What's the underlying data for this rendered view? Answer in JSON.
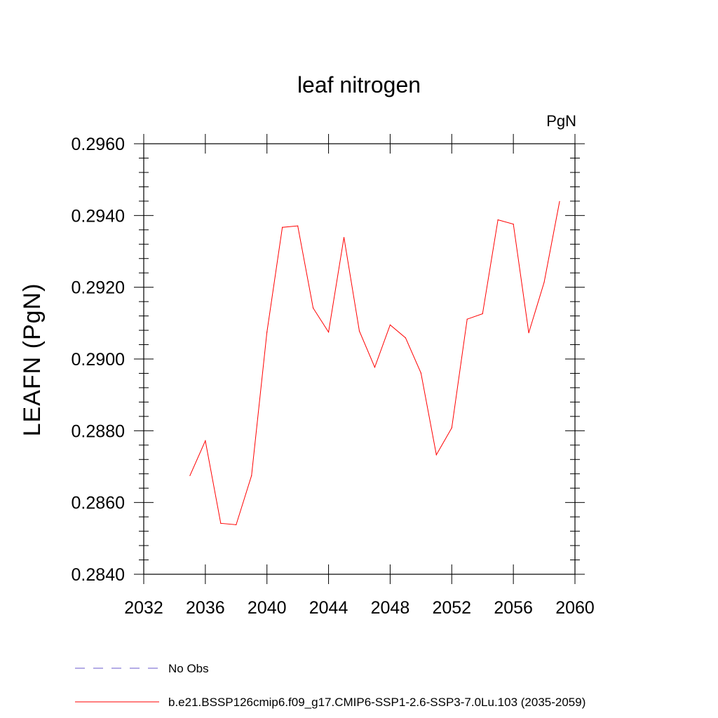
{
  "chart_data": {
    "type": "line",
    "title": "leaf nitrogen",
    "units": "PgN",
    "ylabel": "LEAFN  (PgN)",
    "xlabel": "",
    "xlim": [
      2032,
      2060
    ],
    "ylim": [
      0.284,
      0.296
    ],
    "x_ticks": [
      "2032",
      "2036",
      "2040",
      "2044",
      "2048",
      "2052",
      "2056",
      "2060"
    ],
    "y_ticks": [
      "0.2840",
      "0.2860",
      "0.2880",
      "0.2900",
      "0.2920",
      "0.2940",
      "0.2960"
    ],
    "grid": false,
    "legend_position": "bottom",
    "series": [
      {
        "name": "No Obs",
        "color": "#6a5acd",
        "dash": "dashed",
        "x": [],
        "y": []
      },
      {
        "name": "b.e21.BSSP126cmip6.f09_g17.CMIP6-SSP1-2.6-SSP3-7.0Lu.103 (2035-2059)",
        "color": "#ff0000",
        "dash": "solid",
        "x": [
          2035,
          2036,
          2037,
          2038,
          2039,
          2040,
          2041,
          2042,
          2043,
          2044,
          2045,
          2046,
          2047,
          2048,
          2049,
          2050,
          2051,
          2052,
          2053,
          2054,
          2055,
          2056,
          2057,
          2058,
          2059
        ],
        "y": [
          0.28675,
          0.28772,
          0.28542,
          0.28538,
          0.28675,
          0.29075,
          0.29367,
          0.29371,
          0.29142,
          0.29075,
          0.29339,
          0.29078,
          0.28977,
          0.29095,
          0.29059,
          0.28961,
          0.28733,
          0.28808,
          0.29111,
          0.29126,
          0.29388,
          0.29376,
          0.29073,
          0.29214,
          0.29439
        ]
      }
    ]
  }
}
